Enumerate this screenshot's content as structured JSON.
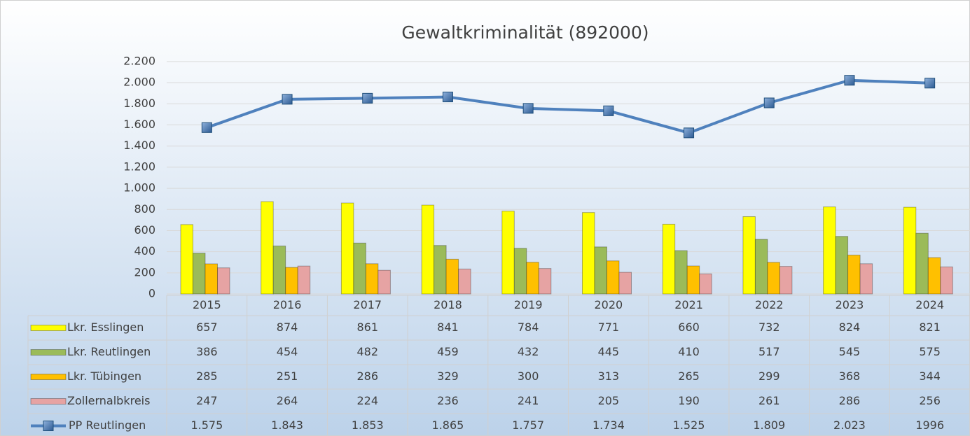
{
  "chart_data": {
    "type": "bar",
    "title": "Gewaltkriminalität (892000)",
    "categories": [
      "2015",
      "2016",
      "2017",
      "2018",
      "2019",
      "2020",
      "2021",
      "2022",
      "2023",
      "2024"
    ],
    "series": [
      {
        "name": "Lkr. Esslingen",
        "color": "#ffff00",
        "values": [
          657,
          874,
          861,
          841,
          784,
          771,
          660,
          732,
          824,
          821
        ]
      },
      {
        "name": "Lkr. Reutlingen",
        "color": "#9bbb59",
        "values": [
          386,
          454,
          482,
          459,
          432,
          445,
          410,
          517,
          545,
          575
        ]
      },
      {
        "name": "Lkr. Tübingen",
        "color": "#ffc000",
        "values": [
          285,
          251,
          286,
          329,
          300,
          313,
          265,
          299,
          368,
          344
        ]
      },
      {
        "name": "Zollernalbkreis",
        "color": "#e6a3a3",
        "values": [
          247,
          264,
          224,
          236,
          241,
          205,
          190,
          261,
          286,
          256
        ]
      },
      {
        "name": "PP Reutlingen",
        "type": "line",
        "color": "#4f81bd",
        "values": [
          1575,
          1843,
          1853,
          1865,
          1757,
          1734,
          1525,
          1809,
          2023,
          1996
        ],
        "value_labels": [
          "1.575",
          "1.843",
          "1.853",
          "1.865",
          "1.757",
          "1.734",
          "1.525",
          "1.809",
          "2.023",
          "1996"
        ]
      }
    ],
    "ylim": [
      0,
      2200
    ],
    "yticks": [
      0,
      200,
      400,
      600,
      800,
      {
        "value": 1000,
        "label": "1.000"
      },
      {
        "value": 1200,
        "label": "1.200"
      },
      {
        "value": 1400,
        "label": "1.400"
      },
      {
        "value": 1600,
        "label": "1.600"
      },
      {
        "value": 1800,
        "label": "1.800"
      },
      {
        "value": 2000,
        "label": "2.000"
      },
      {
        "value": 2200,
        "label": "2.200"
      }
    ],
    "grid": true
  }
}
